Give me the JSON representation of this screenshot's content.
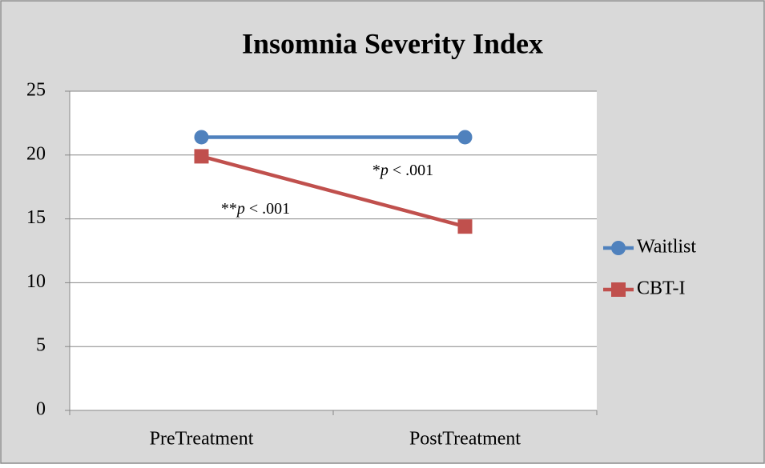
{
  "chart_data": {
    "type": "line",
    "title": "Insomnia Severity Index",
    "categories": [
      "PreTreatment",
      "PostTreatment"
    ],
    "series": [
      {
        "name": "Waitlist",
        "color": "#4f81bd",
        "marker": "circle",
        "values": [
          21.4,
          21.4
        ]
      },
      {
        "name": "CBT-I",
        "color": "#c0504d",
        "marker": "square",
        "values": [
          19.9,
          14.4
        ]
      }
    ],
    "ylim": [
      0,
      25
    ],
    "yticks": [
      0,
      5,
      10,
      15,
      20,
      25
    ],
    "grid": true,
    "legend": "right",
    "annotations": [
      {
        "parts": [
          "*",
          "p",
          " < .001"
        ]
      },
      {
        "parts": [
          "**",
          "p",
          " < .001"
        ]
      }
    ]
  }
}
